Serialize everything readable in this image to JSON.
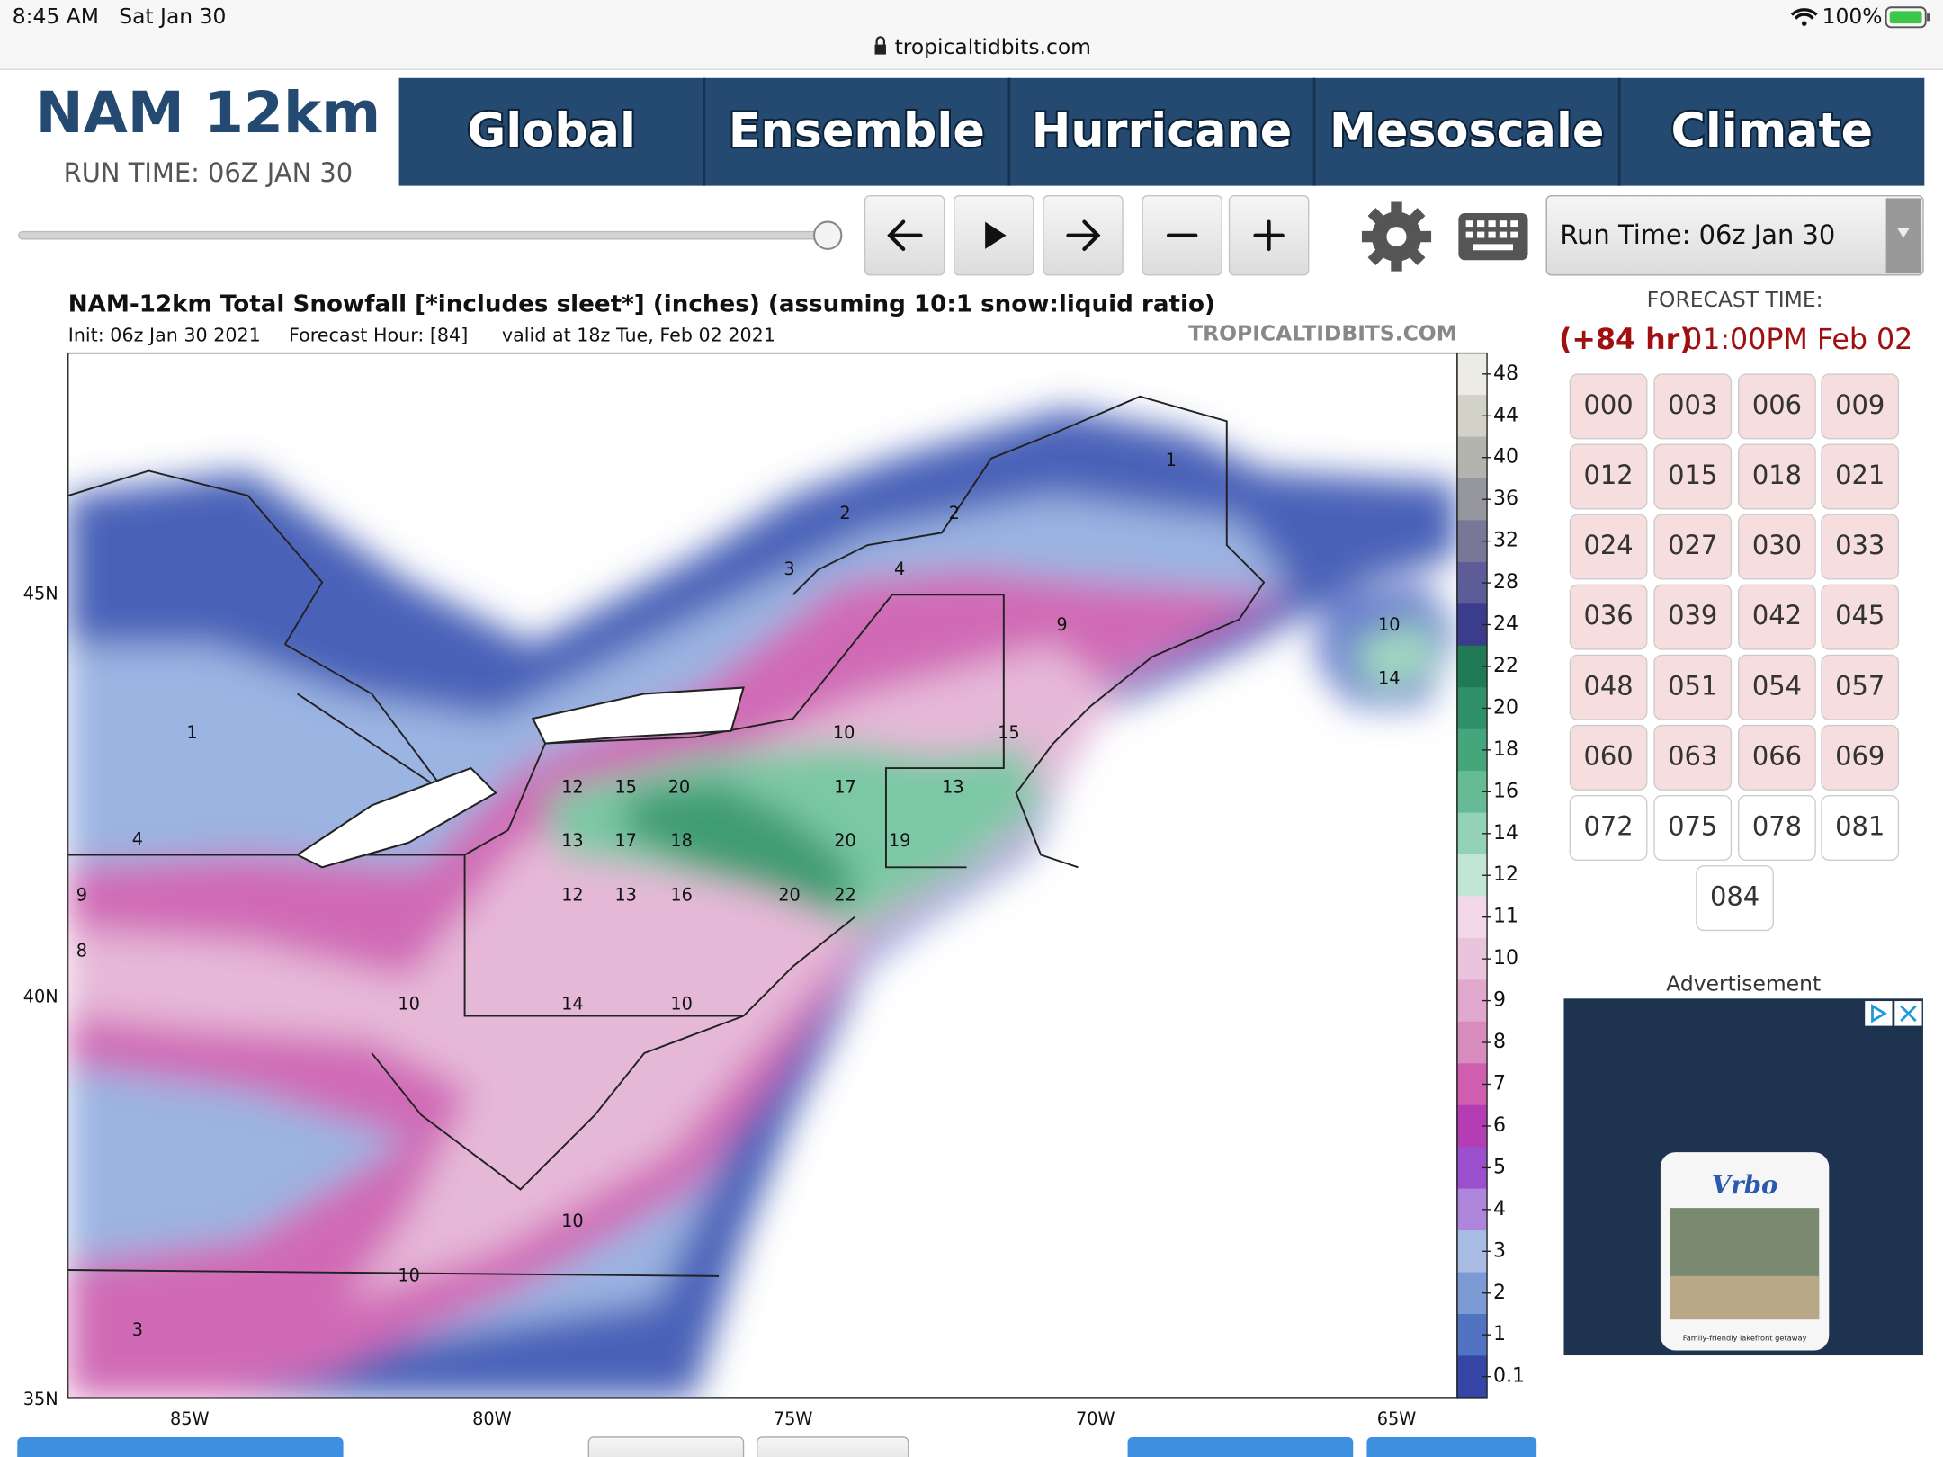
{
  "status": {
    "time": "8:45 AM",
    "date": "Sat Jan 30",
    "battery": "100%"
  },
  "url": "tropicaltidbits.com",
  "header": {
    "model": "NAM 12km",
    "run_time": "RUN TIME: 06Z JAN 30"
  },
  "nav": [
    "Global",
    "Ensemble",
    "Hurricane",
    "Mesoscale",
    "Climate"
  ],
  "run_select": "Run Time: 06z Jan 30",
  "map": {
    "title": "NAM-12km Total Snowfall [*includes sleet*] (inches) (assuming 10:1 snow:liquid ratio)",
    "init": "Init: 06z Jan 30 2021",
    "forecast_hour": "Forecast Hour: [84]",
    "valid": "valid at 18z Tue, Feb 02 2021",
    "credit": "TROPICALTIDBITS.COM",
    "lat_labels": [
      "45N",
      "40N",
      "35N"
    ],
    "lon_labels": [
      "85W",
      "80W",
      "75W",
      "70W",
      "65W"
    ],
    "colorbar": [
      {
        "label": "48",
        "color": "#ecece4"
      },
      {
        "label": "44",
        "color": "#d2d2c8"
      },
      {
        "label": "40",
        "color": "#b4b4ae"
      },
      {
        "label": "36",
        "color": "#96969e"
      },
      {
        "label": "32",
        "color": "#787896"
      },
      {
        "label": "28",
        "color": "#5c5c98"
      },
      {
        "label": "24",
        "color": "#3c3c8c"
      },
      {
        "label": "22",
        "color": "#1f7a55"
      },
      {
        "label": "20",
        "color": "#2f9068"
      },
      {
        "label": "18",
        "color": "#45a67c"
      },
      {
        "label": "16",
        "color": "#66bb95"
      },
      {
        "label": "14",
        "color": "#93d2b4"
      },
      {
        "label": "12",
        "color": "#c2e6d6"
      },
      {
        "label": "11",
        "color": "#f2d8e8"
      },
      {
        "label": "10",
        "color": "#eac4dc"
      },
      {
        "label": "9",
        "color": "#e0a8cc"
      },
      {
        "label": "8",
        "color": "#d88cbe"
      },
      {
        "label": "7",
        "color": "#cf5fae"
      },
      {
        "label": "6",
        "color": "#b43cb4"
      },
      {
        "label": "5",
        "color": "#9a50cc"
      },
      {
        "label": "4",
        "color": "#ad86dc"
      },
      {
        "label": "3",
        "color": "#a8bce4"
      },
      {
        "label": "2",
        "color": "#7c9ad4"
      },
      {
        "label": "1",
        "color": "#5272c2"
      },
      {
        "label": "0.1",
        "color": "#3646a6"
      }
    ],
    "labels": [
      "1",
      "2",
      "2",
      "3",
      "4",
      "9",
      "10",
      "14",
      "10",
      "15",
      "12",
      "15",
      "20",
      "17",
      "13",
      "13",
      "17",
      "18",
      "20",
      "19",
      "12",
      "13",
      "16",
      "20",
      "22",
      "9",
      "8",
      "4",
      "1",
      "10",
      "14",
      "10",
      "10",
      "10",
      "3"
    ]
  },
  "forecast": {
    "label": "FORECAST TIME:",
    "hour": "(+84 hr)",
    "time": "01:00PM Feb 02",
    "hours": [
      "000",
      "003",
      "006",
      "009",
      "012",
      "015",
      "018",
      "021",
      "024",
      "027",
      "030",
      "033",
      "036",
      "039",
      "042",
      "045",
      "048",
      "051",
      "054",
      "057",
      "060",
      "063",
      "066",
      "069",
      "072",
      "075",
      "078",
      "081",
      "084"
    ]
  },
  "ad": {
    "label": "Advertisement",
    "brand": "Vrbo",
    "caption": "Family-friendly lakefront getaway"
  }
}
